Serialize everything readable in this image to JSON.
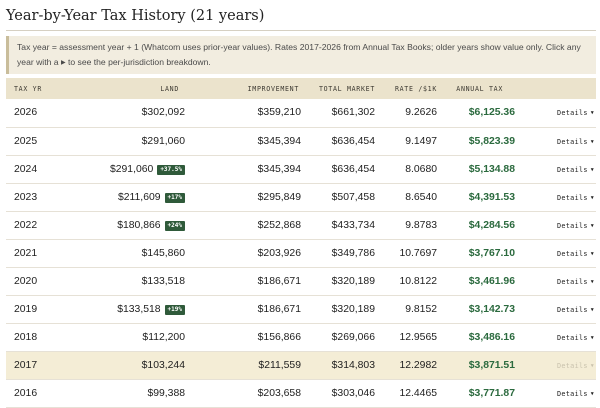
{
  "page": {
    "title": "Year-by-Year Tax History (21 years)"
  },
  "notice": {
    "text_before": "Tax year = assessment year + 1 (Whatcom uses prior-year values). Rates 2017-2026 from Annual Tax Books; older years show value only. Click any year with a",
    "arrow_icon": "triangle-right-icon",
    "text_after": "to see the per-jurisdiction breakdown."
  },
  "table": {
    "headers": {
      "year": "TAX YR",
      "land": "LAND",
      "improvement": "IMPROVEMENT",
      "total_market": "TOTAL MARKET",
      "rate": "RATE /$1K",
      "annual_tax": "ANNUAL TAX"
    },
    "details_label": "Details",
    "rows": [
      {
        "year": "2026",
        "land": "$302,092",
        "badge": "",
        "improvement": "$359,210",
        "total_market": "$661,302",
        "rate": "9.2626",
        "annual_tax": "$6,125.36",
        "highlighted": false
      },
      {
        "year": "2025",
        "land": "$291,060",
        "badge": "",
        "improvement": "$345,394",
        "total_market": "$636,454",
        "rate": "9.1497",
        "annual_tax": "$5,823.39",
        "highlighted": false
      },
      {
        "year": "2024",
        "land": "$291,060",
        "badge": "+37.5%",
        "improvement": "$345,394",
        "total_market": "$636,454",
        "rate": "8.0680",
        "annual_tax": "$5,134.88",
        "highlighted": false
      },
      {
        "year": "2023",
        "land": "$211,609",
        "badge": "+17%",
        "improvement": "$295,849",
        "total_market": "$507,458",
        "rate": "8.6540",
        "annual_tax": "$4,391.53",
        "highlighted": false
      },
      {
        "year": "2022",
        "land": "$180,866",
        "badge": "+24%",
        "improvement": "$252,868",
        "total_market": "$433,734",
        "rate": "9.8783",
        "annual_tax": "$4,284.56",
        "highlighted": false
      },
      {
        "year": "2021",
        "land": "$145,860",
        "badge": "",
        "improvement": "$203,926",
        "total_market": "$349,786",
        "rate": "10.7697",
        "annual_tax": "$3,767.10",
        "highlighted": false
      },
      {
        "year": "2020",
        "land": "$133,518",
        "badge": "",
        "improvement": "$186,671",
        "total_market": "$320,189",
        "rate": "10.8122",
        "annual_tax": "$3,461.96",
        "highlighted": false
      },
      {
        "year": "2019",
        "land": "$133,518",
        "badge": "+19%",
        "improvement": "$186,671",
        "total_market": "$320,189",
        "rate": "9.8152",
        "annual_tax": "$3,142.73",
        "highlighted": false
      },
      {
        "year": "2018",
        "land": "$112,200",
        "badge": "",
        "improvement": "$156,866",
        "total_market": "$269,066",
        "rate": "12.9565",
        "annual_tax": "$3,486.16",
        "highlighted": false
      },
      {
        "year": "2017",
        "land": "$103,244",
        "badge": "",
        "improvement": "$211,559",
        "total_market": "$314,803",
        "rate": "12.2982",
        "annual_tax": "$3,871.51",
        "highlighted": true
      },
      {
        "year": "2016",
        "land": "$99,388",
        "badge": "",
        "improvement": "$203,658",
        "total_market": "$303,046",
        "rate": "12.4465",
        "annual_tax": "$3,771.87",
        "highlighted": false
      }
    ]
  },
  "colors": {
    "header_bg": "#ebe3cc",
    "notice_bg": "#f2ede0",
    "badge_bg": "#2f5a3a",
    "tax_green": "#2b6a3e",
    "highlight_row": "#f4edd6"
  }
}
